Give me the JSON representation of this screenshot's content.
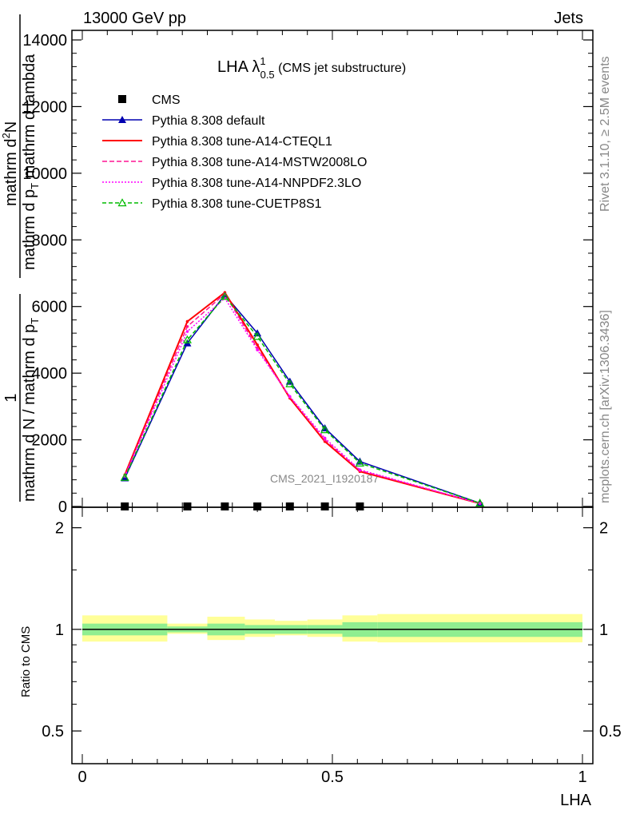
{
  "header": {
    "left": "13000 GeV pp",
    "right": "Jets"
  },
  "side_labels": {
    "rivet": "Rivet 3.1.10, ≥ 2.5M events",
    "mcplots": "mcplots.cern.ch [arXiv:1306.3436]"
  },
  "main_title": {
    "lead": "LHA λ",
    "sup": "1",
    "sub": "0.5",
    "tail": " (CMS jet substructure)"
  },
  "watermark": "CMS_2021_I1920187",
  "colors": {
    "data": "#000000",
    "default": "#0000b0",
    "cteq": "#ff0000",
    "mstw": "#ff1493",
    "nnpdf": "#ff00ff",
    "cuetp": "#00bb00",
    "band_inner": "#90ee90",
    "band_outer": "#ffff99"
  },
  "chart_data": [
    {
      "type": "line",
      "xlabel": "",
      "ylabel_parts": {
        "numerator_top": "mathrm d",
        "numerator_sup": "2",
        "numerator_tail": "N",
        "denominator": "mathrm d p",
        "denominator_sub": "T",
        "denominator_tail": " mathrm d lambda",
        "prefix_num": "1",
        "prefix_den": "mathrm d N / mathrm d p",
        "prefix_den_sub": "T"
      },
      "xlim": [
        0,
        1
      ],
      "ylim": [
        0,
        14000
      ],
      "yticks": [
        0,
        2000,
        4000,
        6000,
        8000,
        10000,
        12000,
        14000
      ],
      "ytick_labels": [
        "0",
        "2000",
        "4000",
        "6000",
        "8000",
        "10000",
        "12000",
        "14000"
      ],
      "x": [
        0.085,
        0.21,
        0.285,
        0.35,
        0.415,
        0.485,
        0.555,
        0.795
      ],
      "series": [
        {
          "name": "CMS",
          "key": "data",
          "marker": "square",
          "values": [
            0,
            0,
            0,
            0,
            0,
            0,
            0,
            null
          ]
        },
        {
          "name": "Pythia 8.308 default",
          "key": "default",
          "dash": "",
          "marker": "triangle",
          "values": [
            850,
            4900,
            6350,
            5200,
            3750,
            2350,
            1350,
            100
          ]
        },
        {
          "name": "Pythia 8.308 tune-A14-CTEQL1",
          "key": "cteq",
          "dash": "",
          "marker": "none",
          "values": [
            950,
            5550,
            6420,
            4850,
            3250,
            1950,
            1050,
            90
          ]
        },
        {
          "name": "Pythia 8.308 tune-A14-MSTW2008LO",
          "key": "mstw",
          "dash": "6,3",
          "marker": "none",
          "values": [
            920,
            5400,
            6380,
            4750,
            3280,
            2000,
            1080,
            90
          ]
        },
        {
          "name": "Pythia 8.308 tune-A14-NNPDF2.3LO",
          "key": "nnpdf",
          "dash": "2,2",
          "marker": "none",
          "values": [
            900,
            5250,
            6250,
            4700,
            3300,
            2050,
            1100,
            95
          ]
        },
        {
          "name": "Pythia 8.308 tune-CUETP8S1",
          "key": "cuetp",
          "dash": "5,3",
          "marker": "open-triangle",
          "values": [
            870,
            5000,
            6300,
            5100,
            3680,
            2300,
            1300,
            100
          ]
        }
      ],
      "legend_placement": "top-left"
    },
    {
      "type": "area",
      "ylabel": "Ratio to CMS",
      "xlabel": "LHA",
      "xlim": [
        0,
        1
      ],
      "ylim": [
        0.4,
        2.3
      ],
      "yscale": "log",
      "yticks": [
        0.5,
        1,
        2
      ],
      "ytick_labels": [
        "0.5",
        "1",
        "2"
      ],
      "xticks": [
        0,
        0.5,
        1
      ],
      "xtick_labels": [
        "0",
        "0.5",
        "1"
      ],
      "bins": [
        {
          "x0": 0.0,
          "x1": 0.17,
          "inner": [
            0.96,
            1.04
          ],
          "outer": [
            0.92,
            1.1
          ]
        },
        {
          "x0": 0.17,
          "x1": 0.25,
          "inner": [
            0.98,
            1.02
          ],
          "outer": [
            0.97,
            1.04
          ]
        },
        {
          "x0": 0.25,
          "x1": 0.325,
          "inner": [
            0.96,
            1.04
          ],
          "outer": [
            0.93,
            1.09
          ]
        },
        {
          "x0": 0.325,
          "x1": 0.385,
          "inner": [
            0.97,
            1.03
          ],
          "outer": [
            0.95,
            1.07
          ]
        },
        {
          "x0": 0.385,
          "x1": 0.45,
          "inner": [
            0.97,
            1.03
          ],
          "outer": [
            0.96,
            1.06
          ]
        },
        {
          "x0": 0.45,
          "x1": 0.52,
          "inner": [
            0.97,
            1.03
          ],
          "outer": [
            0.95,
            1.07
          ]
        },
        {
          "x0": 0.52,
          "x1": 0.59,
          "inner": [
            0.95,
            1.05
          ],
          "outer": [
            0.92,
            1.1
          ]
        },
        {
          "x0": 0.59,
          "x1": 1.0,
          "inner": [
            0.95,
            1.05
          ],
          "outer": [
            0.915,
            1.11
          ]
        }
      ],
      "reference_line": 1
    }
  ]
}
